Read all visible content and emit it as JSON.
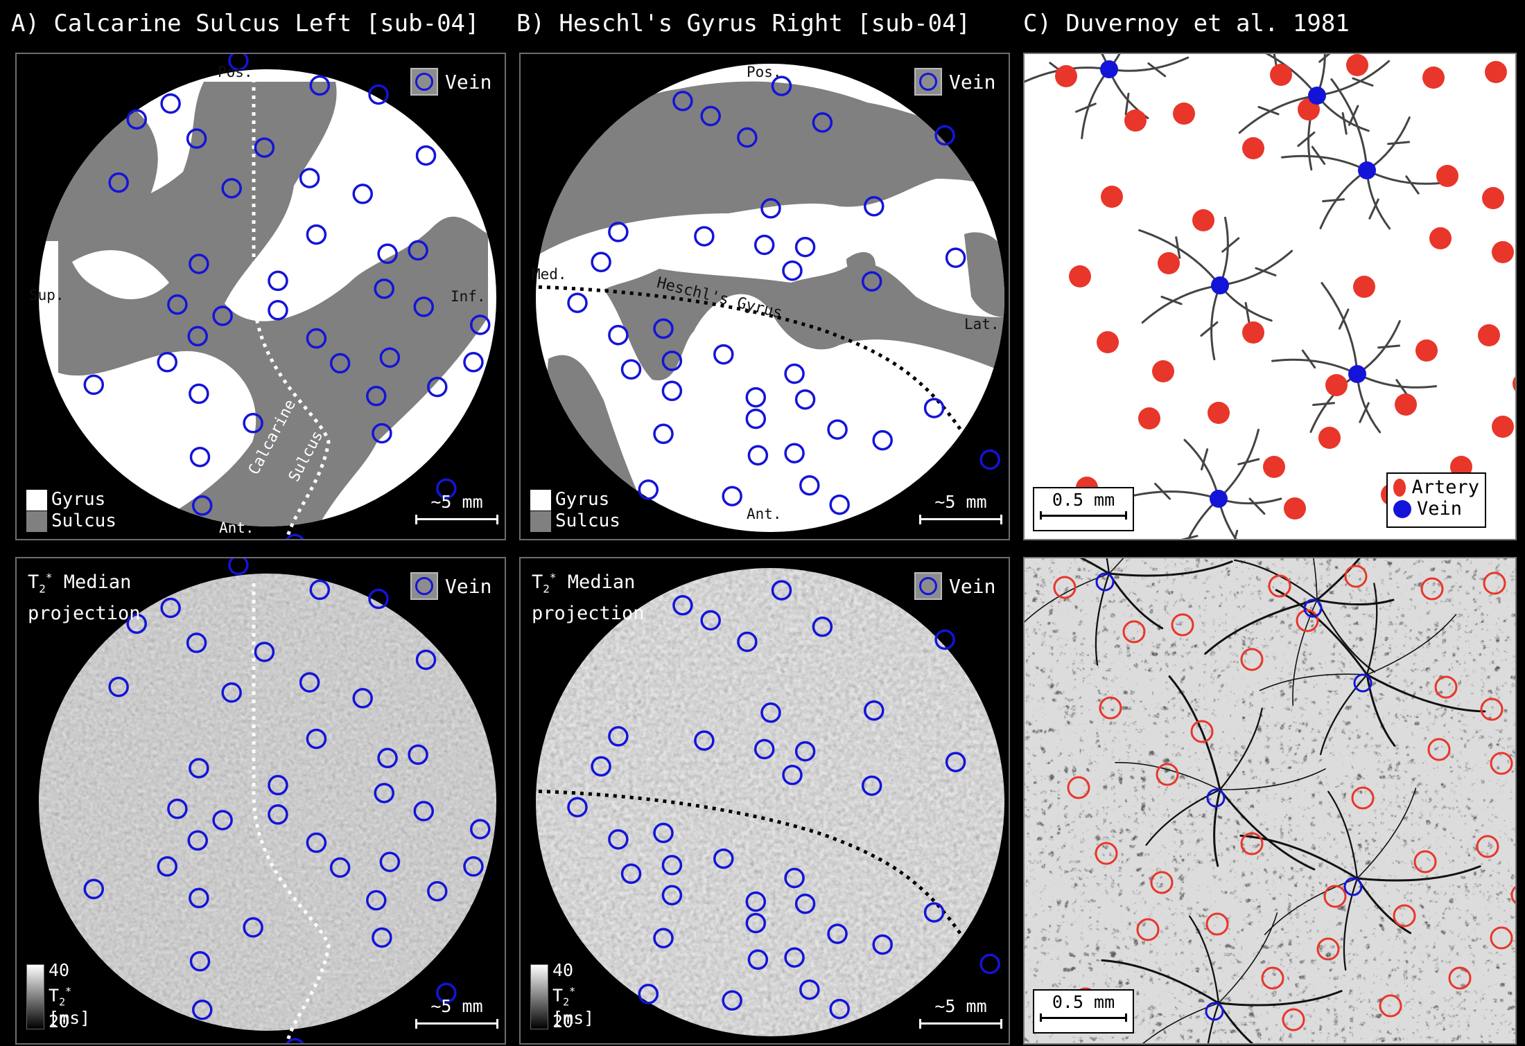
{
  "titles": {
    "a": "A) Calcarine Sulcus Left [sub-04]",
    "b": "B) Heschl's Gyrus Right [sub-04]",
    "c": "C) Duvernoy et al. 1981"
  },
  "legend": {
    "vein": "Vein",
    "gyrus": "Gyrus",
    "sulcus": "Sulcus",
    "artery": "Artery"
  },
  "scale": {
    "mm5": "~5 mm",
    "mm05": "0.5 mm"
  },
  "panelA": {
    "pos": "Pos.",
    "ant": "Ant.",
    "sup": "Sup.",
    "inf": "Inf.",
    "sulcus_label_1": "Calcarine",
    "sulcus_label_2": "Sulcus"
  },
  "panelB": {
    "pos": "Pos.",
    "ant": "Ant.",
    "med": "Med.",
    "lat": "Lat.",
    "gyrus_label": "Heschl's Gyrus"
  },
  "projection": {
    "line1": "T",
    "sub": "2",
    "sup": "*",
    "line1_rest": " Median",
    "line2": "projection"
  },
  "colorbar": {
    "max": "40",
    "min": "20",
    "unit_sym": "T",
    "unit_sub": "2",
    "unit_sup": "*",
    "unit_rest": "[ms]"
  },
  "colors": {
    "vein": "#1414d8",
    "artery": "#e8362a",
    "sulcus": "#808080",
    "gyrus": "#ffffff"
  },
  "icons": [
    "vein-ring-icon"
  ]
}
